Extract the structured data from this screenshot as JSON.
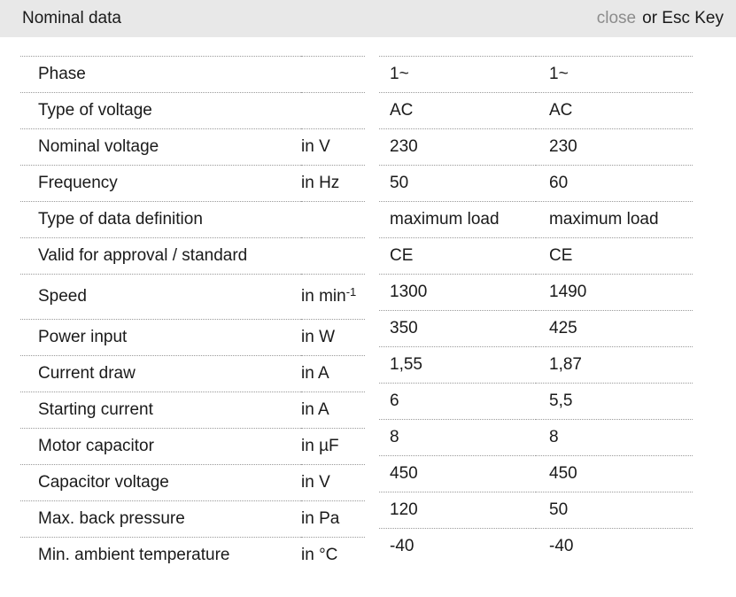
{
  "header": {
    "title": "Nominal data",
    "close_label": "close",
    "esc_label": "or Esc Key"
  },
  "colors": {
    "header_bg": "#e8e8e8",
    "close_link": "#8c8c8c",
    "text": "#1a1a1a",
    "row_border": "#9a9a9a"
  },
  "table": {
    "rows": [
      {
        "label": "Phase",
        "unit": "",
        "v1": "1~",
        "v2": "1~"
      },
      {
        "label": "Type of voltage",
        "unit": "",
        "v1": "AC",
        "v2": "AC"
      },
      {
        "label": "Nominal voltage",
        "unit": "in V",
        "v1": "230",
        "v2": "230"
      },
      {
        "label": "Frequency",
        "unit": "in Hz",
        "v1": "50",
        "v2": "60"
      },
      {
        "label": "Type of data definition",
        "unit": "",
        "v1": "maximum load",
        "v2": "maximum load"
      },
      {
        "label": "Valid for approval / standard",
        "unit": "",
        "v1": "CE",
        "v2": "CE"
      },
      {
        "label": "Speed",
        "unit": "in min",
        "unit_sup": "-1",
        "v1": "1300",
        "v2": "1490"
      },
      {
        "label": "Power input",
        "unit": "in W",
        "v1": "350",
        "v2": "425"
      },
      {
        "label": "Current draw",
        "unit": "in A",
        "v1": "1,55",
        "v2": "1,87"
      },
      {
        "label": "Starting current",
        "unit": "in A",
        "v1": "6",
        "v2": "5,5"
      },
      {
        "label": "Motor capacitor",
        "unit": "in µF",
        "v1": "8",
        "v2": "8"
      },
      {
        "label": "Capacitor voltage",
        "unit": "in V",
        "v1": "450",
        "v2": "450"
      },
      {
        "label": "Max. back pressure",
        "unit": "in Pa",
        "v1": "120",
        "v2": "50"
      },
      {
        "label": "Min. ambient temperature",
        "unit": "in °C",
        "v1": "-40",
        "v2": "-40"
      }
    ]
  }
}
